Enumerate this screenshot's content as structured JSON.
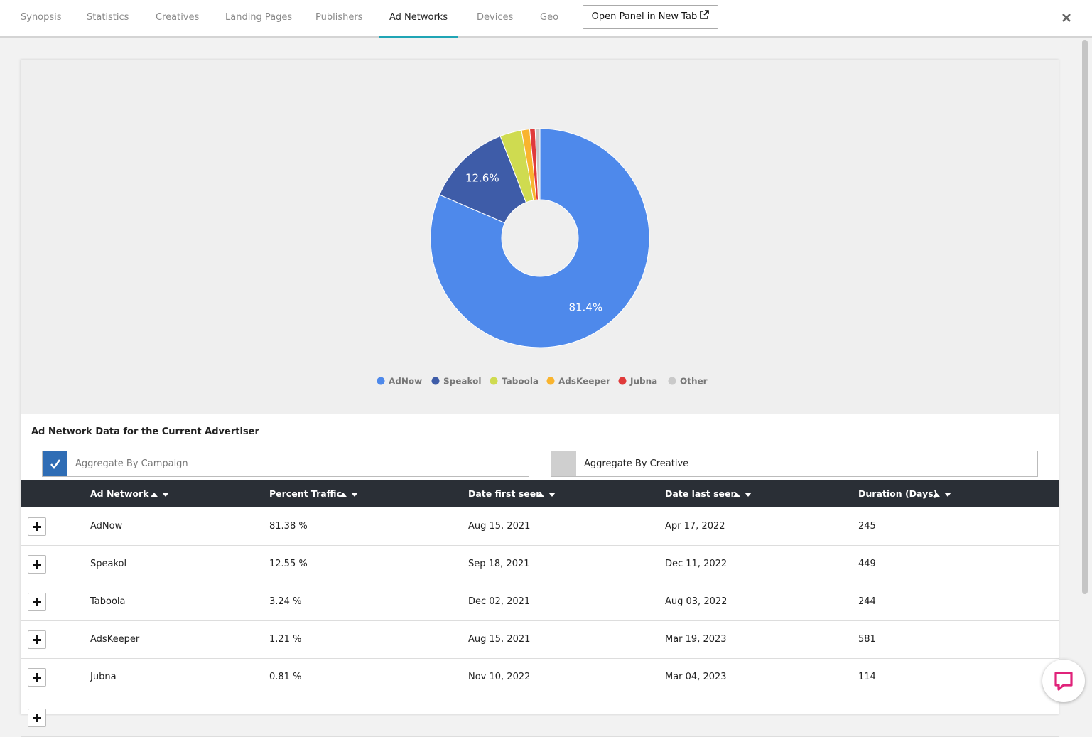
{
  "tabs": [
    "Synopsis",
    "Statistics",
    "Creatives",
    "Landing Pages",
    "Publishers",
    "Ad Networks",
    "Devices",
    "Geo"
  ],
  "active_tab": 5,
  "open_panel_button": "Open Panel in New Tab",
  "chart_data": {
    "type": "pie",
    "categories": [
      "AdNow",
      "Speakol",
      "Taboola",
      "AdsKeeper",
      "Jubna",
      "Other"
    ],
    "values": [
      81.4,
      12.6,
      3.2,
      1.2,
      0.8,
      0.7
    ],
    "value_labels": [
      "81.4%",
      "12.6%",
      null,
      null,
      null,
      null
    ],
    "colors": [
      "#4e89eb",
      "#3e5ca8",
      "#cfdb50",
      "#f9b42e",
      "#e03a3a",
      "#c9c9c9"
    ],
    "donut": true
  },
  "section_title": "Ad Network Data for the Current Advertiser",
  "aggregate_options": [
    {
      "label": "Aggregate By Campaign",
      "checked": true
    },
    {
      "label": "Aggregate By Creative",
      "checked": false
    }
  ],
  "table": {
    "columns": [
      "Ad Network",
      "Percent Traffic",
      "Date first seen",
      "Date last seen",
      "Duration (Days)"
    ],
    "rows": [
      [
        "AdNow",
        "81.38 %",
        "Aug 15, 2021",
        "Apr 17, 2022",
        "245"
      ],
      [
        "Speakol",
        "12.55 %",
        "Sep 18, 2021",
        "Dec 11, 2022",
        "449"
      ],
      [
        "Taboola",
        "3.24 %",
        "Dec 02, 2021",
        "Aug 03, 2022",
        "244"
      ],
      [
        "AdsKeeper",
        "1.21 %",
        "Aug 15, 2021",
        "Mar 19, 2023",
        "581"
      ],
      [
        "Jubna",
        "0.81 %",
        "Nov 10, 2022",
        "Mar 04, 2023",
        "114"
      ]
    ]
  }
}
